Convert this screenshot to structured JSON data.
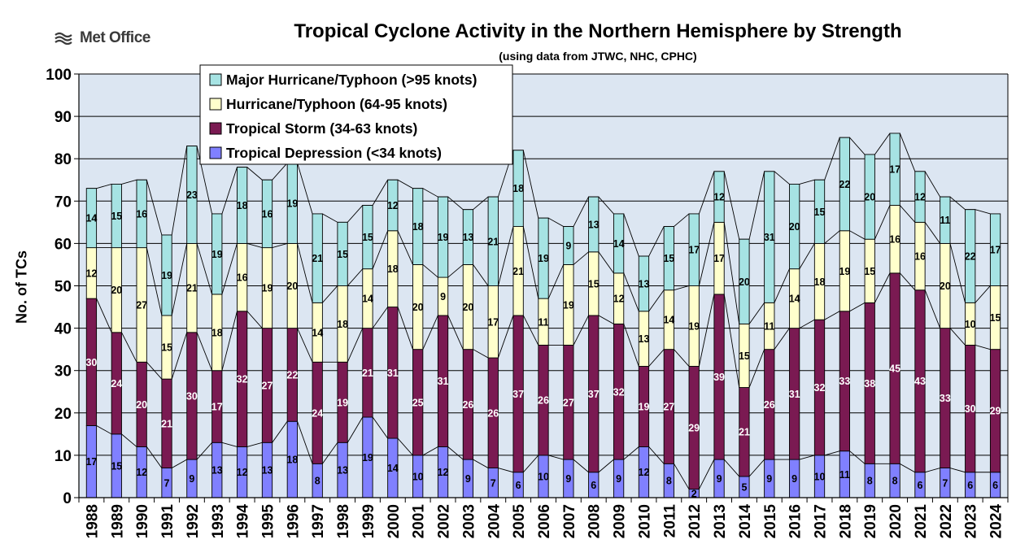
{
  "logo_text": "Met Office",
  "chart_data": {
    "type": "bar",
    "stacked": true,
    "title": "Tropical Cyclone Activity in the Northern Hemisphere by Strength",
    "subtitle": "(using data from JTWC, NHC, CPHC)",
    "xlabel": "",
    "ylabel": "No. of TCs",
    "ylim": [
      0,
      100
    ],
    "yticks": [
      0,
      10,
      20,
      30,
      40,
      50,
      60,
      70,
      80,
      90,
      100
    ],
    "grid": true,
    "legend_position": "top-left",
    "categories": [
      "1988",
      "1989",
      "1990",
      "1991",
      "1992",
      "1993",
      "1994",
      "1995",
      "1996",
      "1997",
      "1998",
      "1999",
      "2000",
      "2001",
      "2002",
      "2003",
      "2004",
      "2005",
      "2006",
      "2007",
      "2008",
      "2009",
      "2010",
      "2011",
      "2012",
      "2013",
      "2014",
      "2015",
      "2016",
      "2017",
      "2018",
      "2019",
      "2020",
      "2021",
      "2022",
      "2023",
      "2024"
    ],
    "series": [
      {
        "name": "Tropical Depression (<34 knots)",
        "color": "#8080ff",
        "values": [
          17,
          15,
          12,
          7,
          9,
          13,
          12,
          13,
          18,
          8,
          13,
          19,
          14,
          10,
          12,
          9,
          7,
          6,
          10,
          9,
          6,
          9,
          12,
          8,
          2,
          9,
          5,
          9,
          9,
          10,
          11,
          8,
          8,
          6,
          7,
          6,
          6
        ]
      },
      {
        "name": "Tropical Storm (34-63 knots)",
        "color": "#7a1a52",
        "values": [
          30,
          24,
          20,
          21,
          30,
          17,
          32,
          27,
          22,
          24,
          19,
          21,
          31,
          25,
          31,
          26,
          26,
          37,
          26,
          27,
          37,
          32,
          19,
          27,
          29,
          39,
          21,
          26,
          31,
          32,
          33,
          38,
          45,
          43,
          33,
          30,
          29
        ]
      },
      {
        "name": "Hurricane/Typhoon (64-95 knots)",
        "color": "#ffffcc",
        "values": [
          12,
          20,
          27,
          15,
          21,
          18,
          16,
          19,
          20,
          14,
          18,
          14,
          18,
          20,
          9,
          20,
          17,
          21,
          11,
          19,
          15,
          12,
          13,
          14,
          19,
          17,
          15,
          11,
          14,
          18,
          19,
          15,
          16,
          16,
          20,
          10,
          15
        ]
      },
      {
        "name": "Major Hurricane/Typhoon (>95 knots)",
        "color": "#a6e3e3",
        "values": [
          14,
          15,
          16,
          19,
          23,
          19,
          18,
          16,
          19,
          21,
          15,
          15,
          12,
          18,
          19,
          13,
          21,
          18,
          19,
          9,
          13,
          14,
          13,
          15,
          17,
          12,
          20,
          31,
          20,
          15,
          22,
          20,
          17,
          12,
          11,
          22,
          17
        ]
      }
    ],
    "legend_order": [
      "Major Hurricane/Typhoon (>95 knots)",
      "Hurricane/Typhoon (64-95 knots)",
      "Tropical Storm (34-63 knots)",
      "Tropical Depression (<34 knots)"
    ]
  },
  "colors": {
    "plot_background": "#dce6f2",
    "gridline": "#000000",
    "connector": "#000000"
  }
}
